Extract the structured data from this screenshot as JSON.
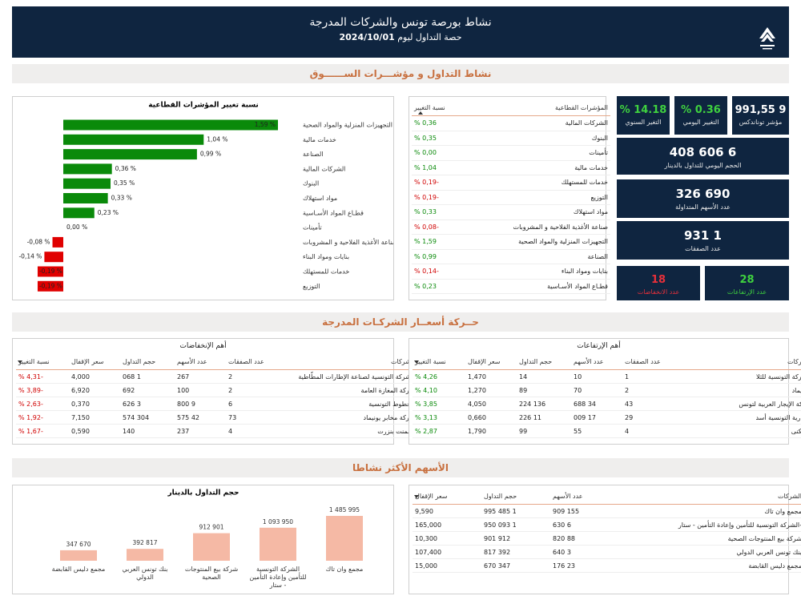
{
  "header": {
    "title": "نشاط بورصة تونس والشركات المدرجة",
    "subtitle": "حصة التداول ليوم",
    "date": "2024/10/01"
  },
  "sections": [
    "نشاط التداول و مؤشـــرات الســــــوق",
    "حــركة أسعــار الشركـات المدرجة",
    "الأسهم الأكثر نشاطا"
  ],
  "chart_data": [
    {
      "type": "hbar",
      "title": "نسبة تغيير المؤشرات القطاعية",
      "color": "#0a8a0a",
      "negative_color": "#e00000",
      "categories": [
        "التجهيزات المنزلية والمواد الصحية",
        "خدمات مالية",
        "الصناعة",
        "الشركات المالية",
        "البنوك",
        "مواد استهلاك",
        "قطـاع المواد الأسـاسية",
        "تأمينات",
        "صناعة الأغذية الفلاحية و المشروبات",
        "بنايات ومواد البناء",
        "خدمات للمستهلك",
        "التوزيع"
      ],
      "values": [
        1.59,
        1.04,
        0.99,
        0.36,
        0.35,
        0.33,
        0.23,
        0.0,
        -0.08,
        -0.14,
        -0.19,
        -0.19
      ],
      "value_labels": [
        "1,59 %",
        "1,04 %",
        "0,99 %",
        "0,36 %",
        "0,35 %",
        "0,33 %",
        "0,23 %",
        "0,00 %",
        "-0,08 %",
        "-0,14 %",
        "-0,19 %",
        "-0,19 %"
      ]
    },
    {
      "type": "bar",
      "title": "حجم التداول بالدينار",
      "color": "#f5b9a5",
      "categories": [
        "مجمع دليس القابضة",
        "بنك تونس العربي الدولي",
        "شركة بيع المنتوجات الصحية",
        "الشركة التونسية للتأمين وإعادة التأمين - ستار",
        "مجمع وان تاك"
      ],
      "values": [
        347670,
        392817,
        912901,
        1093950,
        1485995
      ],
      "value_labels": [
        "347 670",
        "392 817",
        "912 901",
        "1 093 950",
        "1 485 995"
      ]
    }
  ],
  "sector_table": {
    "columns": [
      "المؤشرات القطاعية",
      "نسبة التغيير"
    ],
    "rows": [
      [
        "الشركات المالية",
        "0,36 %"
      ],
      [
        "البنوك",
        "0,35 %"
      ],
      [
        "تأمينات",
        "0,00 %"
      ],
      [
        "خدمات مالية",
        "1,04 %"
      ],
      [
        "خدمات للمستهلك",
        "-0,19 %"
      ],
      [
        "التوزيع",
        "-0,19 %"
      ],
      [
        "مواد استهلاك",
        "0,33 %"
      ],
      [
        "صناعة الأغذية الفلاحية و المشروبات",
        "-0,08 %"
      ],
      [
        "التجهيزات المنزلية والمواد الصحية",
        "1,59 %"
      ],
      [
        "الصناعة",
        "0,99 %"
      ],
      [
        "بنايات ومواد البناء",
        "-0,14 %"
      ],
      [
        "قطـاع المواد الأسـاسية",
        "0,23 %"
      ]
    ]
  },
  "kpis": [
    {
      "value": "9 991,55",
      "label": "مؤشر توناندكس",
      "color": "#ffffff"
    },
    {
      "value": "0.36 %",
      "label": "التغيير اليومي",
      "color": "#3fd13f"
    },
    {
      "value": "14.18 %",
      "label": "التغير السنوي",
      "color": "#3fd13f"
    },
    {
      "value": "6 606 408",
      "label": "الحجم اليومي للتداول بالدينار",
      "color": "#ffffff"
    },
    {
      "value": "690 326",
      "label": "عدد الأسهم المتداولة",
      "color": "#ffffff"
    },
    {
      "value": "1 931",
      "label": "عدد الصفقات",
      "color": "#ffffff"
    },
    {
      "value": "28",
      "label": "عدد الإرتفاعات",
      "color": "#3fd13f"
    },
    {
      "value": "18",
      "label": "عدد الانخفاضات",
      "color": "#e8303a"
    }
  ],
  "declines": {
    "title": "أهم الإنخفاضات",
    "columns": [
      "الشركات",
      "عدد الصفقات",
      "عدد الأسهم",
      "حجم التداول",
      "سعر الإقفال",
      "نسبة التغيير"
    ],
    "rows": [
      [
        "الشركة التونسية لصناعة الإطارات المطّاطية",
        "2",
        "267",
        "1 068",
        "4,000",
        "-4,31 %"
      ],
      [
        "شركة المغازة العامة",
        "2",
        "100",
        "692",
        "6,920",
        "-3,89 %"
      ],
      [
        "الخطوط التونسية",
        "6",
        "9 800",
        "3 626",
        "0,370",
        "-2,63 %"
      ],
      [
        "شركة مخابر يونيماد",
        "73",
        "42 575",
        "304 574",
        "7,150",
        "-1,92 %"
      ],
      [
        "إسمنت بنزرت",
        "4",
        "237",
        "140",
        "0,590",
        "-1,67 %"
      ]
    ]
  },
  "rises": {
    "title": "أهم الإرتفاعات",
    "columns": [
      "الشركات",
      "عدد الصفقات",
      "عدد الأسهم",
      "حجم التداول",
      "سعر الإقفال",
      "نسبة التغيير"
    ],
    "rows": [
      [
        "الشركة التونسية للثلا",
        "1",
        "10",
        "14",
        "1,470",
        "4,26 %"
      ],
      [
        "سانيماد",
        "2",
        "70",
        "89",
        "1,270",
        "4,10 %"
      ],
      [
        "شركة الإيجار العربية لتونس",
        "43",
        "34 688",
        "136 224",
        "4,050",
        "3,85 %"
      ],
      [
        "الطارية التونسية أسد",
        "29",
        "17 009",
        "11 226",
        "0,660",
        "3,13 %"
      ],
      [
        "السكنى",
        "4",
        "55",
        "99",
        "1,790",
        "2,87 %"
      ]
    ]
  },
  "most_active": {
    "columns": [
      "الشركات",
      "عدد الأسهم",
      "حجم التداول",
      "سعر الإقفال"
    ],
    "rows": [
      [
        "مجمع وان تاك",
        "155 909",
        "1 485 995",
        "9,590"
      ],
      [
        "-الشركة التونسية للتأمين وإعادة التأمين - ستار",
        "6 630",
        "1 093 950",
        "165,000"
      ],
      [
        "شركة بيع المنتوجات الصحية",
        "88 820",
        "912 901",
        "10,300"
      ],
      [
        "بنك تونس العربي الدولي",
        "3 640",
        "392 817",
        "107,400"
      ],
      [
        "مجمع دليس القابضة",
        "23 176",
        "347 670",
        "15,000"
      ]
    ]
  }
}
